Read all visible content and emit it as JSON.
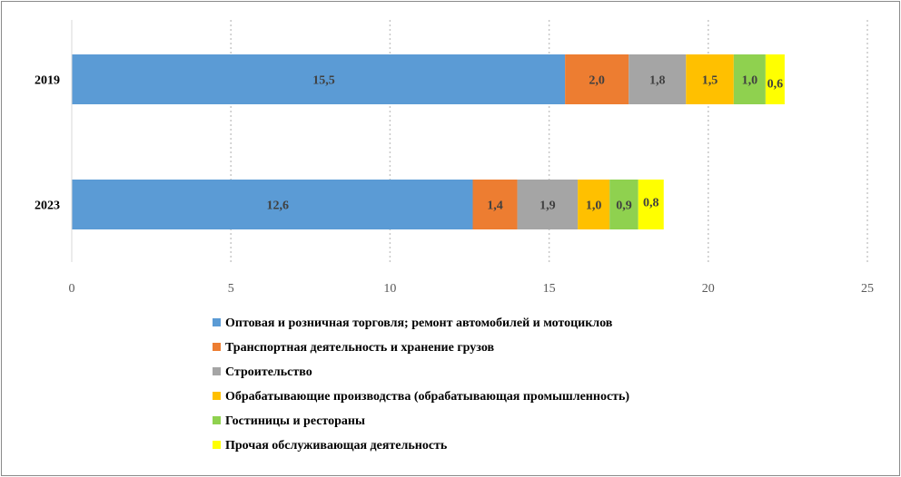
{
  "chart_data": {
    "type": "bar",
    "orientation": "horizontal",
    "stacked": true,
    "title": "",
    "xlabel": "",
    "ylabel": "",
    "xlim": [
      0,
      25
    ],
    "x_ticks": [
      "0",
      "5",
      "10",
      "15",
      "20",
      "25"
    ],
    "grid": "vertical dotted",
    "categories": [
      "2019",
      "2023"
    ],
    "series": [
      {
        "name": "Оптовая и розничная торговля; ремонт автомобилей и мотоциклов",
        "color": "#5b9bd5",
        "values": [
          15.5,
          12.6
        ],
        "labels": [
          "15,5",
          "12,6"
        ]
      },
      {
        "name": "Транспортная деятельность и хранение грузов",
        "color": "#ed7d31",
        "values": [
          2.0,
          1.4
        ],
        "labels": [
          "2,0",
          "1,4"
        ]
      },
      {
        "name": "Строительство",
        "color": "#a5a5a5",
        "values": [
          1.8,
          1.9
        ],
        "labels": [
          "1,8",
          "1,9"
        ]
      },
      {
        "name": "Обрабатывающие производства (обрабатывающая промышленность)",
        "color": "#ffc000",
        "values": [
          1.5,
          1.0
        ],
        "labels": [
          "1,5",
          "1,0"
        ]
      },
      {
        "name": "Гостиницы и рестораны",
        "color": "#8fd14f",
        "values": [
          1.0,
          0.9
        ],
        "labels": [
          "1,0",
          "0,9"
        ]
      },
      {
        "name": "Прочая обслуживающая деятельность",
        "color": "#ffff00",
        "values": [
          0.6,
          0.8
        ],
        "labels": [
          "0,6",
          "0,8"
        ]
      }
    ],
    "legend_position": "bottom-left"
  }
}
